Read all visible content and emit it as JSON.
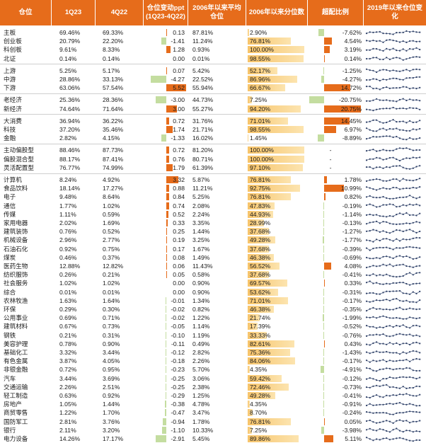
{
  "headers": {
    "name": "仓位",
    "q1": "1Q23",
    "q4": "4Q22",
    "ppt": "仓位变动ppt (1Q23-4Q22)",
    "avg": "2006年以来平均仓位",
    "pct": "2006年以来分位数",
    "ow": "超配比例",
    "trend": "2019年以来仓位变化"
  },
  "colors": {
    "header_bg": "#E66C1B",
    "orange": "#E66C1B",
    "green": "#C4DDA0",
    "pct_bar": "#F7C46A",
    "pct_bar_light": "#FCE4AF",
    "spark_line": "#5A6B8C",
    "spark_dot": "#2E3F66"
  },
  "chart_data": {
    "type": "table",
    "columns": [
      "仓位",
      "1Q23",
      "4Q22",
      "仓位变动ppt (1Q23-4Q22)",
      "2006年以来平均仓位",
      "2006年以来分位数",
      "超配比例",
      "2019年以来仓位变化"
    ],
    "groups": [
      {
        "rows": [
          {
            "name": "主板",
            "q1": "69.46%",
            "q4": "69.33%",
            "ppt": 0.13,
            "ppt_label": "0.13",
            "avg": "87.81%",
            "pct": 2.9,
            "pct_label": "2.90%",
            "ow": -7.62,
            "ow_label": "-7.62%"
          },
          {
            "name": "创业板",
            "q1": "20.79%",
            "q4": "22.20%",
            "ppt": -1.41,
            "ppt_label": "-1.41",
            "avg": "11.24%",
            "pct": 76.81,
            "pct_label": "76.81%",
            "ow": 4.54,
            "ow_label": "4.54%"
          },
          {
            "name": "科创板",
            "q1": "9.61%",
            "q4": "8.33%",
            "ppt": 1.28,
            "ppt_label": "1.28",
            "avg": "0.93%",
            "pct": 100.0,
            "pct_label": "100.00%",
            "ow": 3.19,
            "ow_label": "3.19%"
          },
          {
            "name": "北证",
            "q1": "0.14%",
            "q4": "0.14%",
            "ppt": 0.0,
            "ppt_label": "0.00",
            "avg": "0.01%",
            "pct": 98.55,
            "pct_label": "98.55%",
            "ow": 0.14,
            "ow_label": "0.14%"
          }
        ]
      },
      {
        "rows": [
          {
            "name": "上游",
            "q1": "5.25%",
            "q4": "5.17%",
            "ppt": 0.07,
            "ppt_label": "0.07",
            "avg": "5.42%",
            "pct": 52.17,
            "pct_label": "52.17%",
            "ow": -1.25,
            "ow_label": "-1.25%"
          },
          {
            "name": "中游",
            "q1": "28.86%",
            "q4": "33.13%",
            "ppt": -4.27,
            "ppt_label": "-4.27",
            "avg": "22.52%",
            "pct": 86.96,
            "pct_label": "86.96%",
            "ow": -4.27,
            "ow_label": "-4.27%"
          },
          {
            "name": "下游",
            "q1": "63.06%",
            "q4": "57.54%",
            "ppt": 5.52,
            "ppt_label": "5.52",
            "avg": "55.94%",
            "pct": 66.67,
            "pct_label": "66.67%",
            "ow": 14.72,
            "ow_label": "14.72%"
          }
        ]
      },
      {
        "rows": [
          {
            "name": "老经济",
            "q1": "25.36%",
            "q4": "28.36%",
            "ppt": -3.0,
            "ppt_label": "-3.00",
            "avg": "44.73%",
            "pct": 7.25,
            "pct_label": "7.25%",
            "ow": -20.75,
            "ow_label": "-20.75%"
          },
          {
            "name": "新经济",
            "q1": "74.64%",
            "q4": "71.64%",
            "ppt": 3.0,
            "ppt_label": "3.00",
            "avg": "55.27%",
            "pct": 94.2,
            "pct_label": "94.20%",
            "ow": 20.75,
            "ow_label": "20.75%"
          }
        ]
      },
      {
        "rows": [
          {
            "name": "大消费",
            "q1": "36.94%",
            "q4": "36.22%",
            "ppt": 0.72,
            "ppt_label": "0.72",
            "avg": "31.76%",
            "pct": 71.01,
            "pct_label": "71.01%",
            "ow": 14.45,
            "ow_label": "14.45%"
          },
          {
            "name": "科技",
            "q1": "37.20%",
            "q4": "35.46%",
            "ppt": 1.74,
            "ppt_label": "1.74",
            "avg": "21.71%",
            "pct": 98.55,
            "pct_label": "98.55%",
            "ow": 6.97,
            "ow_label": "6.97%"
          },
          {
            "name": "金融",
            "q1": "2.82%",
            "q4": "4.15%",
            "ppt": -1.33,
            "ppt_label": "-1.33",
            "avg": "16.02%",
            "pct": 1.45,
            "pct_label": "1.45%",
            "ow": -8.89,
            "ow_label": "-8.89%"
          }
        ]
      },
      {
        "rows": [
          {
            "name": "主动偏股型",
            "q1": "88.46%",
            "q4": "87.73%",
            "ppt": 0.72,
            "ppt_label": "0.72",
            "avg": "81.20%",
            "pct": 100.0,
            "pct_label": "100.00%",
            "ow": null,
            "ow_label": "-"
          },
          {
            "name": "偏股混合型",
            "q1": "88.17%",
            "q4": "87.41%",
            "ppt": 0.76,
            "ppt_label": "0.76",
            "avg": "80.71%",
            "pct": 100.0,
            "pct_label": "100.00%",
            "ow": null,
            "ow_label": "-"
          },
          {
            "name": "灵活配置型",
            "q1": "76.77%",
            "q4": "74.99%",
            "ppt": 1.79,
            "ppt_label": "1.79",
            "avg": "61.39%",
            "pct": 97.1,
            "pct_label": "97.10%",
            "ow": null,
            "ow_label": "-"
          }
        ]
      },
      {
        "rows": [
          {
            "name": "计算机",
            "q1": "8.24%",
            "q4": "4.92%",
            "ppt": 3.32,
            "ppt_label": "3.32",
            "avg": "5.87%",
            "pct": 76.81,
            "pct_label": "76.81%",
            "ow": 1.78,
            "ow_label": "1.78%"
          },
          {
            "name": "食品饮料",
            "q1": "18.14%",
            "q4": "17.27%",
            "ppt": 0.88,
            "ppt_label": "0.88",
            "avg": "11.21%",
            "pct": 92.75,
            "pct_label": "92.75%",
            "ow": 10.99,
            "ow_label": "10.99%"
          },
          {
            "name": "电子",
            "q1": "9.48%",
            "q4": "8.64%",
            "ppt": 0.84,
            "ppt_label": "0.84",
            "avg": "5.25%",
            "pct": 76.81,
            "pct_label": "76.81%",
            "ow": 0.82,
            "ow_label": "0.82%"
          },
          {
            "name": "通信",
            "q1": "1.77%",
            "q4": "1.02%",
            "ppt": 0.74,
            "ppt_label": "0.74",
            "avg": "2.08%",
            "pct": 47.83,
            "pct_label": "47.83%",
            "ow": -0.19,
            "ow_label": "-0.19%"
          },
          {
            "name": "传媒",
            "q1": "1.11%",
            "q4": "0.59%",
            "ppt": 0.52,
            "ppt_label": "0.52",
            "avg": "2.24%",
            "pct": 44.93,
            "pct_label": "44.93%",
            "ow": -1.14,
            "ow_label": "-1.14%"
          },
          {
            "name": "家用电器",
            "q1": "2.02%",
            "q4": "1.69%",
            "ppt": 0.33,
            "ppt_label": "0.33",
            "avg": "3.35%",
            "pct": 28.99,
            "pct_label": "28.99%",
            "ow": -0.13,
            "ow_label": "-0.13%"
          },
          {
            "name": "建筑装饰",
            "q1": "0.76%",
            "q4": "0.52%",
            "ppt": 0.25,
            "ppt_label": "0.25",
            "avg": "1.44%",
            "pct": 37.68,
            "pct_label": "37.68%",
            "ow": -1.27,
            "ow_label": "-1.27%"
          },
          {
            "name": "机械设备",
            "q1": "2.96%",
            "q4": "2.77%",
            "ppt": 0.19,
            "ppt_label": "0.19",
            "avg": "3.25%",
            "pct": 49.28,
            "pct_label": "49.28%",
            "ow": -1.77,
            "ow_label": "-1.77%"
          },
          {
            "name": "石油石化",
            "q1": "0.92%",
            "q4": "0.75%",
            "ppt": 0.17,
            "ppt_label": "0.17",
            "avg": "1.67%",
            "pct": 37.68,
            "pct_label": "37.68%",
            "ow": -0.39,
            "ow_label": "-0.39%"
          },
          {
            "name": "煤炭",
            "q1": "0.46%",
            "q4": "0.37%",
            "ppt": 0.08,
            "ppt_label": "0.08",
            "avg": "1.49%",
            "pct": 46.38,
            "pct_label": "46.38%",
            "ow": -0.69,
            "ow_label": "-0.69%"
          },
          {
            "name": "医药生物",
            "q1": "12.88%",
            "q4": "12.82%",
            "ppt": 0.06,
            "ppt_label": "0.06",
            "avg": "11.43%",
            "pct": 56.52,
            "pct_label": "56.52%",
            "ow": 4.08,
            "ow_label": "4.08%"
          },
          {
            "name": "纺织服饰",
            "q1": "0.26%",
            "q4": "0.21%",
            "ppt": 0.05,
            "ppt_label": "0.05",
            "avg": "0.58%",
            "pct": 37.68,
            "pct_label": "37.68%",
            "ow": -0.41,
            "ow_label": "-0.41%"
          },
          {
            "name": "社会服务",
            "q1": "1.02%",
            "q4": "1.02%",
            "ppt": 0.0,
            "ppt_label": "0.00",
            "avg": "0.90%",
            "pct": 69.57,
            "pct_label": "69.57%",
            "ow": 0.33,
            "ow_label": "0.33%"
          },
          {
            "name": "综合",
            "q1": "0.01%",
            "q4": "0.01%",
            "ppt": 0.0,
            "ppt_label": "0.00",
            "avg": "0.90%",
            "pct": 53.62,
            "pct_label": "53.62%",
            "ow": -0.31,
            "ow_label": "-0.31%"
          },
          {
            "name": "农林牧渔",
            "q1": "1.63%",
            "q4": "1.64%",
            "ppt": -0.01,
            "ppt_label": "-0.01",
            "avg": "1.34%",
            "pct": 71.01,
            "pct_label": "71.01%",
            "ow": -0.17,
            "ow_label": "-0.17%"
          },
          {
            "name": "环保",
            "q1": "0.29%",
            "q4": "0.30%",
            "ppt": -0.02,
            "ppt_label": "-0.02",
            "avg": "0.82%",
            "pct": 46.38,
            "pct_label": "46.38%",
            "ow": -0.35,
            "ow_label": "-0.35%"
          },
          {
            "name": "公用事业",
            "q1": "0.69%",
            "q4": "0.71%",
            "ppt": -0.02,
            "ppt_label": "-0.02",
            "avg": "1.22%",
            "pct": 21.74,
            "pct_label": "21.74%",
            "ow": -1.99,
            "ow_label": "-1.99%"
          },
          {
            "name": "建筑材料",
            "q1": "0.67%",
            "q4": "0.73%",
            "ppt": -0.05,
            "ppt_label": "-0.05",
            "avg": "1.14%",
            "pct": 17.39,
            "pct_label": "17.39%",
            "ow": -0.52,
            "ow_label": "-0.52%"
          },
          {
            "name": "钢铁",
            "q1": "0.21%",
            "q4": "0.31%",
            "ppt": -0.1,
            "ppt_label": "-0.10",
            "avg": "1.19%",
            "pct": 33.33,
            "pct_label": "33.33%",
            "ow": -0.76,
            "ow_label": "-0.76%"
          },
          {
            "name": "美容护理",
            "q1": "0.78%",
            "q4": "0.90%",
            "ppt": -0.11,
            "ppt_label": "-0.11",
            "avg": "0.49%",
            "pct": 82.61,
            "pct_label": "82.61%",
            "ow": 0.43,
            "ow_label": "0.43%"
          },
          {
            "name": "基础化工",
            "q1": "3.32%",
            "q4": "3.44%",
            "ppt": -0.12,
            "ppt_label": "-0.12",
            "avg": "2.82%",
            "pct": 75.36,
            "pct_label": "75.36%",
            "ow": -1.43,
            "ow_label": "-1.43%"
          },
          {
            "name": "有色金属",
            "q1": "3.87%",
            "q4": "4.05%",
            "ppt": -0.18,
            "ppt_label": "-0.18",
            "avg": "2.26%",
            "pct": 84.06,
            "pct_label": "84.06%",
            "ow": -0.17,
            "ow_label": "-0.17%"
          },
          {
            "name": "非银金融",
            "q1": "0.72%",
            "q4": "0.95%",
            "ppt": -0.23,
            "ppt_label": "-0.23",
            "avg": "5.70%",
            "pct": 4.35,
            "pct_label": "4.35%",
            "ow": -4.91,
            "ow_label": "-4.91%"
          },
          {
            "name": "汽车",
            "q1": "3.44%",
            "q4": "3.69%",
            "ppt": -0.25,
            "ppt_label": "-0.25",
            "avg": "3.06%",
            "pct": 59.42,
            "pct_label": "59.42%",
            "ow": -0.12,
            "ow_label": "-0.12%"
          },
          {
            "name": "交通运输",
            "q1": "2.26%",
            "q4": "2.51%",
            "ppt": -0.25,
            "ppt_label": "-0.25",
            "avg": "2.38%",
            "pct": 72.46,
            "pct_label": "72.46%",
            "ow": -0.73,
            "ow_label": "-0.73%"
          },
          {
            "name": "轻工制造",
            "q1": "0.63%",
            "q4": "0.92%",
            "ppt": -0.29,
            "ppt_label": "-0.29",
            "avg": "1.25%",
            "pct": 49.28,
            "pct_label": "49.28%",
            "ow": -0.41,
            "ow_label": "-0.41%"
          },
          {
            "name": "房地产",
            "q1": "1.05%",
            "q4": "1.44%",
            "ppt": -0.38,
            "ppt_label": "-0.38",
            "avg": "4.78%",
            "pct": 4.35,
            "pct_label": "4.35%",
            "ow": -0.91,
            "ow_label": "-0.91%"
          },
          {
            "name": "商贸零售",
            "q1": "1.22%",
            "q4": "1.70%",
            "ppt": -0.47,
            "ppt_label": "-0.47",
            "avg": "3.47%",
            "pct": 8.7,
            "pct_label": "8.70%",
            "ow": -0.24,
            "ow_label": "-0.24%"
          },
          {
            "name": "国防军工",
            "q1": "2.81%",
            "q4": "3.76%",
            "ppt": -0.94,
            "ppt_label": "-0.94",
            "avg": "1.78%",
            "pct": 76.81,
            "pct_label": "76.81%",
            "ow": 0.05,
            "ow_label": "0.05%"
          },
          {
            "name": "银行",
            "q1": "2.11%",
            "q4": "3.20%",
            "ppt": -1.1,
            "ppt_label": "-1.10",
            "avg": "10.33%",
            "pct": 7.25,
            "pct_label": "7.25%",
            "ow": -3.98,
            "ow_label": "-3.98%"
          },
          {
            "name": "电力设备",
            "q1": "14.26%",
            "q4": "17.17%",
            "ppt": -2.91,
            "ppt_label": "-2.91",
            "avg": "5.45%",
            "pct": 89.86,
            "pct_label": "89.86%",
            "ow": 5.11,
            "ow_label": "5.11%"
          }
        ]
      }
    ]
  }
}
